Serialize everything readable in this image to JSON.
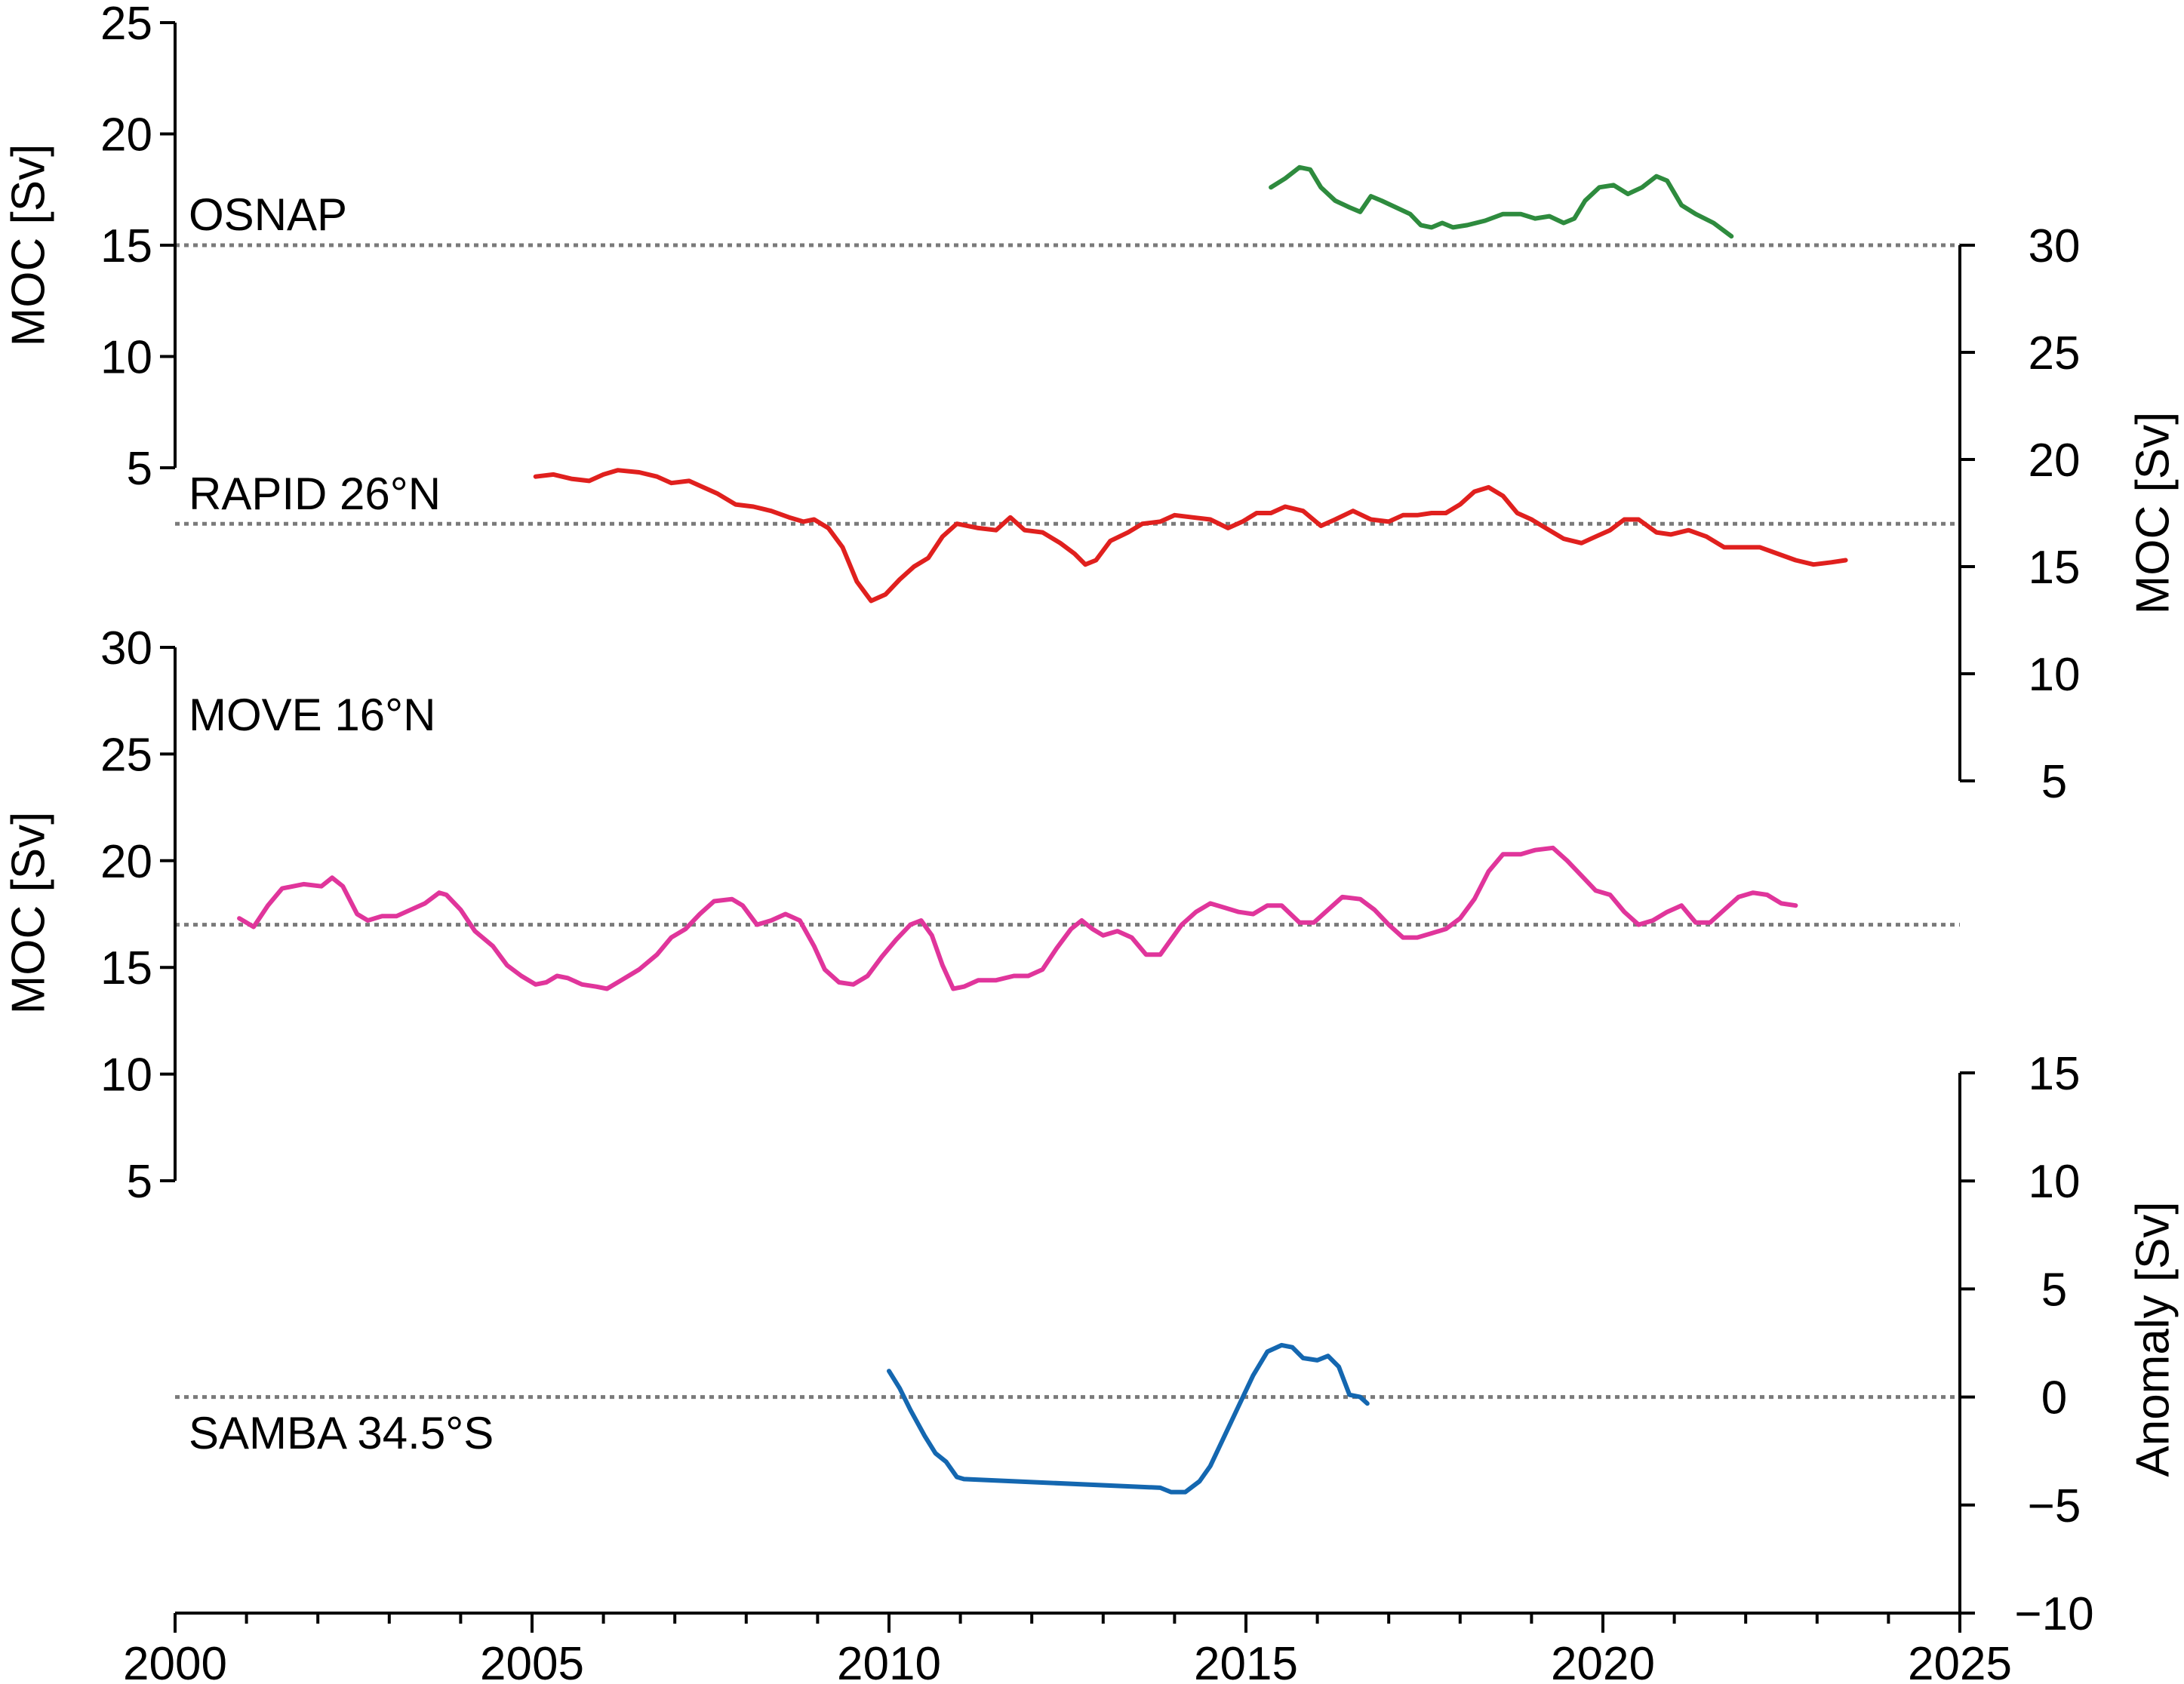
{
  "chart_data": {
    "type": "line",
    "x_axis": {
      "range": [
        2000,
        2025
      ],
      "ticks": [
        2000,
        2005,
        2010,
        2015,
        2020,
        2025
      ],
      "minor_step": 1
    },
    "panels": [
      {
        "id": "osnap",
        "label": "OSNAP",
        "axis_side": "left",
        "ylabel": "MOC [Sv]",
        "ylim": [
          5,
          25
        ],
        "yticks": [
          5,
          10,
          15,
          20,
          25
        ],
        "reference": 15,
        "color": "#2e8b3e",
        "points": [
          [
            2015.35,
            17.6
          ],
          [
            2015.55,
            18.0
          ],
          [
            2015.75,
            18.5
          ],
          [
            2015.9,
            18.4
          ],
          [
            2016.05,
            17.6
          ],
          [
            2016.25,
            17.0
          ],
          [
            2016.45,
            16.7
          ],
          [
            2016.6,
            16.5
          ],
          [
            2016.75,
            17.2
          ],
          [
            2016.9,
            17.0
          ],
          [
            2017.1,
            16.7
          ],
          [
            2017.3,
            16.4
          ],
          [
            2017.45,
            15.9
          ],
          [
            2017.6,
            15.8
          ],
          [
            2017.75,
            16.0
          ],
          [
            2017.9,
            15.8
          ],
          [
            2018.1,
            15.9
          ],
          [
            2018.35,
            16.1
          ],
          [
            2018.6,
            16.4
          ],
          [
            2018.85,
            16.4
          ],
          [
            2019.05,
            16.2
          ],
          [
            2019.25,
            16.3
          ],
          [
            2019.45,
            16.0
          ],
          [
            2019.6,
            16.2
          ],
          [
            2019.75,
            17.0
          ],
          [
            2019.95,
            17.6
          ],
          [
            2020.15,
            17.7
          ],
          [
            2020.35,
            17.3
          ],
          [
            2020.55,
            17.6
          ],
          [
            2020.75,
            18.1
          ],
          [
            2020.9,
            17.9
          ],
          [
            2021.1,
            16.8
          ],
          [
            2021.3,
            16.4
          ],
          [
            2021.55,
            16.0
          ],
          [
            2021.8,
            15.4
          ]
        ]
      },
      {
        "id": "rapid",
        "label": "RAPID 26°N",
        "axis_side": "right",
        "ylabel": "MOC [Sv]",
        "ylim": [
          5,
          30
        ],
        "yticks": [
          5,
          10,
          15,
          20,
          25,
          30
        ],
        "reference": 17,
        "color": "#e0201e",
        "points": [
          [
            2005.05,
            19.2
          ],
          [
            2005.3,
            19.3
          ],
          [
            2005.55,
            19.1
          ],
          [
            2005.8,
            19.0
          ],
          [
            2006.0,
            19.3
          ],
          [
            2006.2,
            19.5
          ],
          [
            2006.5,
            19.4
          ],
          [
            2006.75,
            19.2
          ],
          [
            2006.95,
            18.9
          ],
          [
            2007.2,
            19.0
          ],
          [
            2007.4,
            18.7
          ],
          [
            2007.6,
            18.4
          ],
          [
            2007.85,
            17.9
          ],
          [
            2008.1,
            17.8
          ],
          [
            2008.35,
            17.6
          ],
          [
            2008.6,
            17.3
          ],
          [
            2008.8,
            17.1
          ],
          [
            2008.95,
            17.2
          ],
          [
            2009.15,
            16.8
          ],
          [
            2009.35,
            15.9
          ],
          [
            2009.55,
            14.3
          ],
          [
            2009.75,
            13.4
          ],
          [
            2009.95,
            13.7
          ],
          [
            2010.15,
            14.4
          ],
          [
            2010.35,
            15.0
          ],
          [
            2010.55,
            15.4
          ],
          [
            2010.75,
            16.4
          ],
          [
            2010.95,
            17.0
          ],
          [
            2011.25,
            16.8
          ],
          [
            2011.5,
            16.7
          ],
          [
            2011.7,
            17.3
          ],
          [
            2011.9,
            16.7
          ],
          [
            2012.15,
            16.6
          ],
          [
            2012.4,
            16.1
          ],
          [
            2012.6,
            15.6
          ],
          [
            2012.75,
            15.1
          ],
          [
            2012.9,
            15.3
          ],
          [
            2013.1,
            16.2
          ],
          [
            2013.35,
            16.6
          ],
          [
            2013.55,
            17.0
          ],
          [
            2013.8,
            17.1
          ],
          [
            2014.0,
            17.4
          ],
          [
            2014.25,
            17.3
          ],
          [
            2014.5,
            17.2
          ],
          [
            2014.75,
            16.8
          ],
          [
            2014.95,
            17.1
          ],
          [
            2015.15,
            17.5
          ],
          [
            2015.35,
            17.5
          ],
          [
            2015.55,
            17.8
          ],
          [
            2015.8,
            17.6
          ],
          [
            2016.05,
            16.9
          ],
          [
            2016.25,
            17.2
          ],
          [
            2016.5,
            17.6
          ],
          [
            2016.75,
            17.2
          ],
          [
            2017.0,
            17.1
          ],
          [
            2017.2,
            17.4
          ],
          [
            2017.4,
            17.4
          ],
          [
            2017.6,
            17.5
          ],
          [
            2017.8,
            17.5
          ],
          [
            2018.0,
            17.9
          ],
          [
            2018.2,
            18.5
          ],
          [
            2018.4,
            18.7
          ],
          [
            2018.6,
            18.3
          ],
          [
            2018.8,
            17.5
          ],
          [
            2019.0,
            17.2
          ],
          [
            2019.2,
            16.8
          ],
          [
            2019.45,
            16.3
          ],
          [
            2019.7,
            16.1
          ],
          [
            2019.9,
            16.4
          ],
          [
            2020.1,
            16.7
          ],
          [
            2020.3,
            17.2
          ],
          [
            2020.5,
            17.2
          ],
          [
            2020.75,
            16.6
          ],
          [
            2020.95,
            16.5
          ],
          [
            2021.2,
            16.7
          ],
          [
            2021.45,
            16.4
          ],
          [
            2021.7,
            15.9
          ],
          [
            2021.95,
            15.9
          ],
          [
            2022.2,
            15.9
          ],
          [
            2022.45,
            15.6
          ],
          [
            2022.7,
            15.3
          ],
          [
            2022.95,
            15.1
          ],
          [
            2023.2,
            15.2
          ],
          [
            2023.4,
            15.3
          ]
        ]
      },
      {
        "id": "move",
        "label": "MOVE 16°N",
        "axis_side": "left",
        "ylabel": "MOC [Sv]",
        "ylim": [
          5,
          30
        ],
        "yticks": [
          5,
          10,
          15,
          20,
          25,
          30
        ],
        "reference": 17,
        "color": "#e0359b",
        "points": [
          [
            2000.9,
            17.3
          ],
          [
            2001.1,
            16.9
          ],
          [
            2001.3,
            17.9
          ],
          [
            2001.5,
            18.7
          ],
          [
            2001.8,
            18.9
          ],
          [
            2002.05,
            18.8
          ],
          [
            2002.2,
            19.2
          ],
          [
            2002.35,
            18.8
          ],
          [
            2002.55,
            17.5
          ],
          [
            2002.7,
            17.2
          ],
          [
            2002.9,
            17.4
          ],
          [
            2003.1,
            17.4
          ],
          [
            2003.3,
            17.7
          ],
          [
            2003.5,
            18.0
          ],
          [
            2003.7,
            18.5
          ],
          [
            2003.8,
            18.4
          ],
          [
            2004.0,
            17.7
          ],
          [
            2004.2,
            16.7
          ],
          [
            2004.45,
            16.0
          ],
          [
            2004.65,
            15.1
          ],
          [
            2004.85,
            14.6
          ],
          [
            2005.05,
            14.2
          ],
          [
            2005.2,
            14.3
          ],
          [
            2005.35,
            14.6
          ],
          [
            2005.5,
            14.5
          ],
          [
            2005.7,
            14.2
          ],
          [
            2005.9,
            14.1
          ],
          [
            2006.05,
            14.0
          ],
          [
            2006.25,
            14.4
          ],
          [
            2006.5,
            14.9
          ],
          [
            2006.75,
            15.6
          ],
          [
            2006.95,
            16.4
          ],
          [
            2007.15,
            16.8
          ],
          [
            2007.35,
            17.5
          ],
          [
            2007.55,
            18.1
          ],
          [
            2007.8,
            18.2
          ],
          [
            2007.95,
            17.9
          ],
          [
            2008.15,
            17.0
          ],
          [
            2008.35,
            17.2
          ],
          [
            2008.55,
            17.5
          ],
          [
            2008.75,
            17.2
          ],
          [
            2008.95,
            16.0
          ],
          [
            2009.1,
            14.9
          ],
          [
            2009.3,
            14.3
          ],
          [
            2009.5,
            14.2
          ],
          [
            2009.7,
            14.6
          ],
          [
            2009.9,
            15.5
          ],
          [
            2010.1,
            16.3
          ],
          [
            2010.3,
            17.0
          ],
          [
            2010.45,
            17.2
          ],
          [
            2010.6,
            16.5
          ],
          [
            2010.75,
            15.1
          ],
          [
            2010.9,
            14.0
          ],
          [
            2011.05,
            14.1
          ],
          [
            2011.25,
            14.4
          ],
          [
            2011.5,
            14.4
          ],
          [
            2011.75,
            14.6
          ],
          [
            2011.95,
            14.6
          ],
          [
            2012.15,
            14.9
          ],
          [
            2012.35,
            15.9
          ],
          [
            2012.55,
            16.8
          ],
          [
            2012.7,
            17.2
          ],
          [
            2012.85,
            16.8
          ],
          [
            2013.0,
            16.5
          ],
          [
            2013.2,
            16.7
          ],
          [
            2013.4,
            16.4
          ],
          [
            2013.6,
            15.6
          ],
          [
            2013.8,
            15.6
          ],
          [
            2013.95,
            16.3
          ],
          [
            2014.1,
            17.0
          ],
          [
            2014.3,
            17.6
          ],
          [
            2014.5,
            18.0
          ],
          [
            2014.7,
            17.8
          ],
          [
            2014.9,
            17.6
          ],
          [
            2015.1,
            17.5
          ],
          [
            2015.3,
            17.9
          ],
          [
            2015.5,
            17.9
          ],
          [
            2015.75,
            17.1
          ],
          [
            2015.95,
            17.1
          ],
          [
            2016.15,
            17.7
          ],
          [
            2016.35,
            18.3
          ],
          [
            2016.6,
            18.2
          ],
          [
            2016.8,
            17.7
          ],
          [
            2017.0,
            17.0
          ],
          [
            2017.2,
            16.4
          ],
          [
            2017.4,
            16.4
          ],
          [
            2017.6,
            16.6
          ],
          [
            2017.8,
            16.8
          ],
          [
            2018.0,
            17.3
          ],
          [
            2018.2,
            18.2
          ],
          [
            2018.4,
            19.5
          ],
          [
            2018.6,
            20.3
          ],
          [
            2018.85,
            20.3
          ],
          [
            2019.05,
            20.5
          ],
          [
            2019.3,
            20.6
          ],
          [
            2019.5,
            20.0
          ],
          [
            2019.7,
            19.3
          ],
          [
            2019.9,
            18.6
          ],
          [
            2020.1,
            18.4
          ],
          [
            2020.3,
            17.6
          ],
          [
            2020.5,
            17.0
          ],
          [
            2020.7,
            17.2
          ],
          [
            2020.9,
            17.6
          ],
          [
            2021.1,
            17.9
          ],
          [
            2021.3,
            17.1
          ],
          [
            2021.5,
            17.1
          ],
          [
            2021.7,
            17.7
          ],
          [
            2021.9,
            18.3
          ],
          [
            2022.1,
            18.5
          ],
          [
            2022.3,
            18.4
          ],
          [
            2022.5,
            18.0
          ],
          [
            2022.7,
            17.9
          ]
        ]
      },
      {
        "id": "samba",
        "label": "SAMBA 34.5°S",
        "axis_side": "right",
        "ylabel": "Anomaly [Sv]",
        "ylim": [
          -10,
          15
        ],
        "yticks": [
          -10,
          -5,
          0,
          5,
          10,
          15
        ],
        "yticklabels": [
          "−10",
          "−5",
          "0",
          "5",
          "10",
          "15"
        ],
        "reference": 0,
        "color": "#1467b0",
        "points": [
          [
            2010.0,
            1.2
          ],
          [
            2010.15,
            0.4
          ],
          [
            2010.3,
            -0.6
          ],
          [
            2010.5,
            -1.8
          ],
          [
            2010.65,
            -2.6
          ],
          [
            2010.8,
            -3.0
          ],
          [
            2010.95,
            -3.7
          ],
          [
            2011.05,
            -3.8
          ],
          [
            2013.8,
            -4.2
          ],
          [
            2013.95,
            -4.4
          ],
          [
            2014.15,
            -4.4
          ],
          [
            2014.35,
            -3.9
          ],
          [
            2014.5,
            -3.2
          ],
          [
            2014.7,
            -1.8
          ],
          [
            2014.9,
            -0.4
          ],
          [
            2015.1,
            1.0
          ],
          [
            2015.3,
            2.1
          ],
          [
            2015.5,
            2.4
          ],
          [
            2015.65,
            2.3
          ],
          [
            2015.8,
            1.8
          ],
          [
            2016.0,
            1.7
          ],
          [
            2016.15,
            1.9
          ],
          [
            2016.3,
            1.4
          ],
          [
            2016.45,
            0.1
          ],
          [
            2016.6,
            0.0
          ],
          [
            2016.7,
            -0.3
          ]
        ]
      }
    ]
  }
}
